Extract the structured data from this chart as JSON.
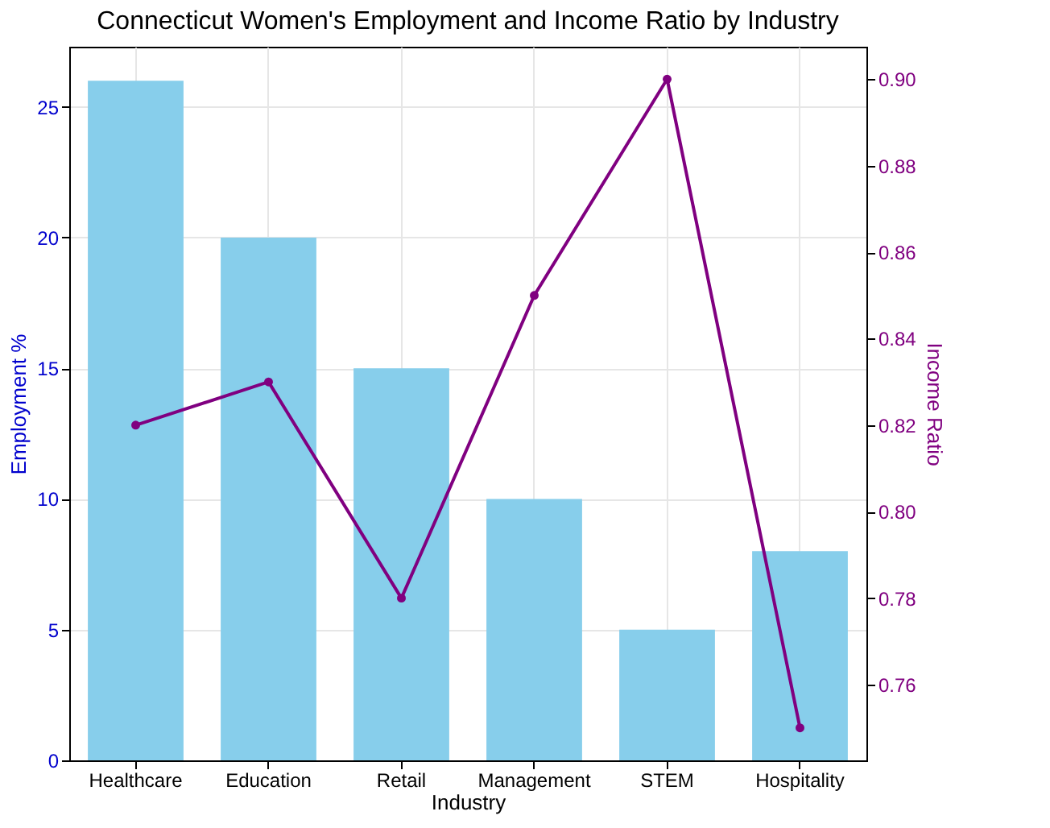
{
  "chart_data": {
    "type": "bar",
    "title": "Connecticut Women's Employment and Income Ratio by Industry",
    "xlabel": "Industry",
    "ylabel": "Employment %",
    "y2label": "Income Ratio",
    "categories": [
      "Healthcare",
      "Education",
      "Retail",
      "Management",
      "STEM",
      "Hospitality"
    ],
    "series": [
      {
        "color": "#87ceeb",
        "values": [
          26,
          20,
          15,
          10,
          5,
          8
        ]
      },
      {
        "type": "line",
        "axis": "y2",
        "color": "#800080",
        "marker": "circle",
        "values": [
          0.82,
          0.83,
          0.78,
          0.85,
          0.9,
          0.75
        ]
      }
    ],
    "ylim": [
      0,
      27.3
    ],
    "yticks": [
      0,
      5,
      10,
      15,
      20,
      25
    ],
    "y2lim": [
      0.7425,
      0.9075
    ],
    "y2ticks": [
      0.76,
      0.78,
      {
        "value": 0.8,
        "label": "0.80"
      },
      0.82,
      0.84,
      0.86,
      0.88,
      {
        "value": 0.9,
        "label": "0.90"
      }
    ],
    "grid": true
  }
}
